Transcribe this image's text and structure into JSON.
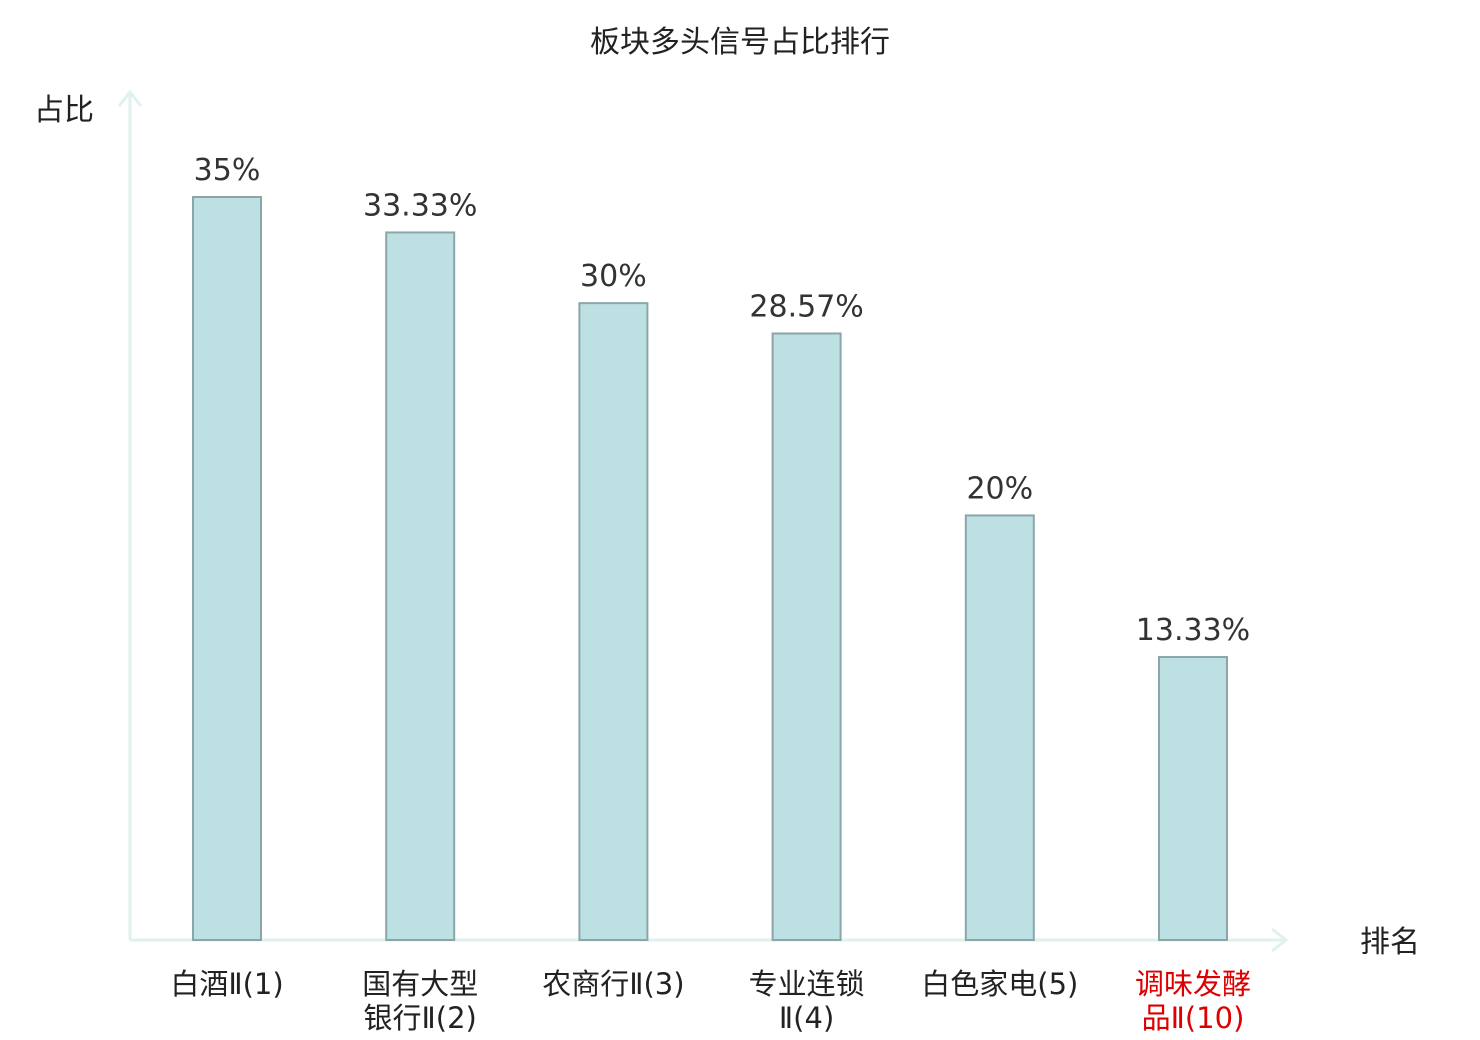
{
  "chart_data": {
    "type": "bar",
    "title": "板块多头信号占比排行",
    "ylabel": "占比",
    "xlabel": "排名",
    "ylim": [
      0,
      35
    ],
    "categories": [
      {
        "lines": [
          "白酒Ⅱ(1)"
        ],
        "color": "#222222"
      },
      {
        "lines": [
          "国有大型",
          "银行Ⅱ(2)"
        ],
        "color": "#222222"
      },
      {
        "lines": [
          "农商行Ⅱ(3)"
        ],
        "color": "#222222"
      },
      {
        "lines": [
          "专业连锁",
          "Ⅱ(4)"
        ],
        "color": "#222222"
      },
      {
        "lines": [
          "白色家电(5)"
        ],
        "color": "#222222"
      },
      {
        "lines": [
          "调味发酵",
          "品Ⅱ(10)"
        ],
        "color": "#dd0000"
      }
    ],
    "values": [
      35,
      33.33,
      30,
      28.57,
      20,
      13.33
    ],
    "value_labels": [
      "35%",
      "33.33%",
      "30%",
      "28.57%",
      "20%",
      "13.33%"
    ],
    "grid": false,
    "colors": {
      "bar_fill": "#bde0e3",
      "bar_stroke": "#8aa6a8",
      "axis": "#dff2ef",
      "highlight": "#dd0000"
    }
  }
}
